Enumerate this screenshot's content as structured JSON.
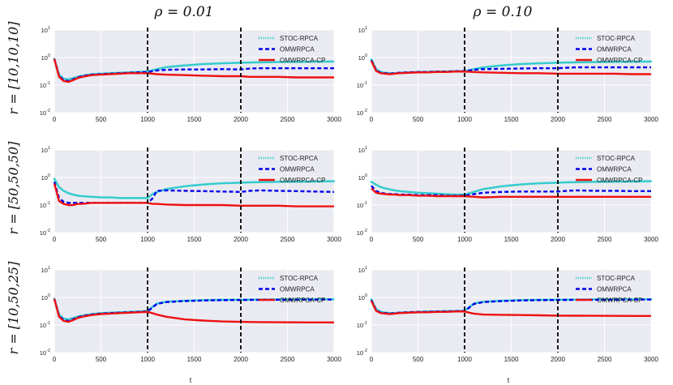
{
  "figure": {
    "column_titles": [
      "ρ = 0.01",
      "ρ = 0.10"
    ],
    "row_labels": [
      "r = [10,10,10]",
      "r = [50,50,50]",
      "r = [10,50,25]"
    ],
    "xlabel": "t"
  },
  "chart_data": [
    {
      "type": "line",
      "panel": "row1-col1",
      "x": [
        0,
        50,
        100,
        150,
        200,
        250,
        300,
        400,
        500,
        600,
        700,
        800,
        900,
        1000,
        1100,
        1200,
        1400,
        1600,
        1800,
        2000,
        2100,
        2200,
        2400,
        2600,
        2800,
        3000
      ],
      "series": [
        {
          "name": "STOC-RPCA",
          "color": "#33cccc",
          "style": "dotted",
          "values": [
            0.9,
            0.24,
            0.17,
            0.16,
            0.18,
            0.2,
            0.22,
            0.25,
            0.26,
            0.27,
            0.28,
            0.29,
            0.3,
            0.31,
            0.38,
            0.45,
            0.52,
            0.58,
            0.62,
            0.65,
            0.66,
            0.67,
            0.69,
            0.7,
            0.71,
            0.72
          ]
        },
        {
          "name": "OMWRPCA",
          "color": "#0000ee",
          "style": "dashed",
          "values": [
            0.9,
            0.22,
            0.15,
            0.14,
            0.16,
            0.19,
            0.21,
            0.24,
            0.25,
            0.26,
            0.27,
            0.28,
            0.29,
            0.3,
            0.34,
            0.36,
            0.37,
            0.37,
            0.38,
            0.37,
            0.4,
            0.41,
            0.41,
            0.41,
            0.41,
            0.41
          ]
        },
        {
          "name": "OMWRPCA-CP",
          "color": "#ee1111",
          "style": "solid",
          "values": [
            0.9,
            0.2,
            0.14,
            0.13,
            0.15,
            0.18,
            0.2,
            0.23,
            0.24,
            0.25,
            0.26,
            0.27,
            0.27,
            0.27,
            0.25,
            0.24,
            0.23,
            0.22,
            0.21,
            0.21,
            0.2,
            0.2,
            0.2,
            0.19,
            0.19,
            0.19
          ]
        }
      ],
      "change_points": [
        1000,
        2000
      ],
      "xlim": [
        0,
        3000
      ],
      "ylim": [
        0.01,
        10
      ],
      "yscale": "log",
      "xticks": [
        0,
        500,
        1000,
        1500,
        2000,
        2500,
        3000
      ],
      "grid": true,
      "legend": "top-right"
    },
    {
      "type": "line",
      "panel": "row1-col2",
      "x": [
        0,
        50,
        100,
        150,
        200,
        250,
        300,
        400,
        500,
        600,
        700,
        800,
        900,
        1000,
        1100,
        1200,
        1400,
        1600,
        1800,
        2000,
        2100,
        2200,
        2400,
        2600,
        2800,
        3000
      ],
      "series": [
        {
          "name": "STOC-RPCA",
          "color": "#33cccc",
          "style": "dotted",
          "values": [
            0.85,
            0.38,
            0.3,
            0.28,
            0.27,
            0.27,
            0.28,
            0.29,
            0.3,
            0.3,
            0.31,
            0.31,
            0.32,
            0.32,
            0.38,
            0.44,
            0.52,
            0.58,
            0.62,
            0.65,
            0.66,
            0.67,
            0.69,
            0.7,
            0.71,
            0.72
          ]
        },
        {
          "name": "OMWRPCA",
          "color": "#0000ee",
          "style": "dashed",
          "values": [
            0.8,
            0.35,
            0.28,
            0.27,
            0.26,
            0.27,
            0.28,
            0.29,
            0.3,
            0.3,
            0.31,
            0.31,
            0.32,
            0.32,
            0.36,
            0.38,
            0.39,
            0.4,
            0.41,
            0.41,
            0.43,
            0.44,
            0.44,
            0.44,
            0.44,
            0.44
          ]
        },
        {
          "name": "OMWRPCA-CP",
          "color": "#ee1111",
          "style": "solid",
          "values": [
            0.75,
            0.33,
            0.27,
            0.26,
            0.25,
            0.26,
            0.27,
            0.28,
            0.29,
            0.29,
            0.3,
            0.3,
            0.31,
            0.31,
            0.3,
            0.29,
            0.28,
            0.27,
            0.27,
            0.26,
            0.26,
            0.26,
            0.26,
            0.26,
            0.25,
            0.25
          ]
        }
      ],
      "change_points": [
        1000,
        2000
      ],
      "xlim": [
        0,
        3000
      ],
      "ylim": [
        0.01,
        10
      ],
      "yscale": "log",
      "xticks": [
        0,
        500,
        1000,
        1500,
        2000,
        2500,
        3000
      ],
      "grid": true,
      "legend": "top-right"
    },
    {
      "type": "line",
      "panel": "row2-col1",
      "x": [
        0,
        50,
        100,
        150,
        200,
        250,
        300,
        400,
        500,
        600,
        700,
        800,
        900,
        1000,
        1050,
        1100,
        1200,
        1400,
        1600,
        1800,
        2000,
        2100,
        2200,
        2400,
        2600,
        2800,
        3000
      ],
      "series": [
        {
          "name": "STOC-RPCA",
          "color": "#33cccc",
          "style": "dotted",
          "values": [
            0.9,
            0.45,
            0.33,
            0.27,
            0.24,
            0.22,
            0.21,
            0.2,
            0.19,
            0.19,
            0.18,
            0.18,
            0.18,
            0.18,
            0.25,
            0.3,
            0.38,
            0.48,
            0.56,
            0.62,
            0.65,
            0.67,
            0.68,
            0.7,
            0.71,
            0.72,
            0.73
          ]
        },
        {
          "name": "OMWRPCA",
          "color": "#0000ee",
          "style": "dashed",
          "values": [
            0.7,
            0.18,
            0.13,
            0.12,
            0.12,
            0.12,
            0.12,
            0.12,
            0.12,
            0.12,
            0.12,
            0.12,
            0.12,
            0.12,
            0.17,
            0.33,
            0.34,
            0.33,
            0.32,
            0.31,
            0.3,
            0.33,
            0.34,
            0.33,
            0.32,
            0.31,
            0.3
          ]
        },
        {
          "name": "OMWRPCA-CP",
          "color": "#ee1111",
          "style": "solid",
          "values": [
            0.6,
            0.14,
            0.11,
            0.1,
            0.1,
            0.11,
            0.11,
            0.12,
            0.12,
            0.12,
            0.12,
            0.12,
            0.12,
            0.12,
            0.11,
            0.11,
            0.105,
            0.1,
            0.1,
            0.1,
            0.095,
            0.095,
            0.095,
            0.095,
            0.09,
            0.09,
            0.09
          ]
        }
      ],
      "change_points": [
        1000,
        2000
      ],
      "xlim": [
        0,
        3000
      ],
      "ylim": [
        0.01,
        10
      ],
      "yscale": "log",
      "xticks": [
        0,
        500,
        1000,
        1500,
        2000,
        2500,
        3000
      ],
      "grid": true,
      "legend": "top-right"
    },
    {
      "type": "line",
      "panel": "row2-col2",
      "x": [
        0,
        50,
        100,
        150,
        200,
        250,
        300,
        400,
        500,
        600,
        700,
        800,
        900,
        1000,
        1100,
        1200,
        1400,
        1600,
        1800,
        2000,
        2100,
        2200,
        2400,
        2600,
        2800,
        3000
      ],
      "series": [
        {
          "name": "STOC-RPCA",
          "color": "#33cccc",
          "style": "dotted",
          "values": [
            0.7,
            0.55,
            0.45,
            0.4,
            0.37,
            0.34,
            0.32,
            0.3,
            0.28,
            0.27,
            0.26,
            0.25,
            0.24,
            0.24,
            0.3,
            0.38,
            0.48,
            0.56,
            0.62,
            0.65,
            0.67,
            0.68,
            0.7,
            0.71,
            0.72,
            0.73
          ]
        },
        {
          "name": "OMWRPCA",
          "color": "#0000ee",
          "style": "dashed",
          "values": [
            0.5,
            0.32,
            0.28,
            0.26,
            0.25,
            0.25,
            0.24,
            0.24,
            0.23,
            0.23,
            0.23,
            0.22,
            0.22,
            0.22,
            0.25,
            0.28,
            0.3,
            0.31,
            0.31,
            0.31,
            0.33,
            0.34,
            0.33,
            0.33,
            0.32,
            0.32
          ]
        },
        {
          "name": "OMWRPCA-CP",
          "color": "#ee1111",
          "style": "solid",
          "values": [
            0.4,
            0.28,
            0.26,
            0.25,
            0.24,
            0.24,
            0.23,
            0.23,
            0.22,
            0.22,
            0.21,
            0.21,
            0.21,
            0.21,
            0.2,
            0.19,
            0.2,
            0.2,
            0.2,
            0.2,
            0.2,
            0.2,
            0.2,
            0.2,
            0.2,
            0.2
          ]
        }
      ],
      "change_points": [
        1000,
        2000
      ],
      "xlim": [
        0,
        3000
      ],
      "ylim": [
        0.01,
        10
      ],
      "yscale": "log",
      "xticks": [
        0,
        500,
        1000,
        1500,
        2000,
        2500,
        3000
      ],
      "grid": true,
      "legend": "top-right"
    },
    {
      "type": "line",
      "panel": "row3-col1",
      "x": [
        0,
        50,
        100,
        150,
        200,
        250,
        300,
        400,
        500,
        600,
        700,
        800,
        900,
        1000,
        1050,
        1100,
        1200,
        1400,
        1600,
        1800,
        2000,
        2200,
        2400,
        2600,
        2800,
        3000
      ],
      "series": [
        {
          "name": "STOC-RPCA",
          "color": "#33cccc",
          "style": "dotted",
          "values": [
            0.9,
            0.24,
            0.17,
            0.16,
            0.18,
            0.2,
            0.22,
            0.25,
            0.27,
            0.28,
            0.29,
            0.3,
            0.31,
            0.32,
            0.45,
            0.6,
            0.7,
            0.76,
            0.8,
            0.82,
            0.83,
            0.84,
            0.85,
            0.85,
            0.86,
            0.86
          ]
        },
        {
          "name": "OMWRPCA",
          "color": "#0000ee",
          "style": "dashed",
          "values": [
            0.9,
            0.22,
            0.15,
            0.14,
            0.16,
            0.19,
            0.21,
            0.24,
            0.26,
            0.27,
            0.28,
            0.29,
            0.3,
            0.31,
            0.43,
            0.58,
            0.68,
            0.74,
            0.78,
            0.8,
            0.81,
            0.82,
            0.83,
            0.83,
            0.84,
            0.84
          ]
        },
        {
          "name": "OMWRPCA-CP",
          "color": "#ee1111",
          "style": "solid",
          "values": [
            0.9,
            0.2,
            0.14,
            0.13,
            0.15,
            0.18,
            0.2,
            0.23,
            0.25,
            0.26,
            0.27,
            0.28,
            0.29,
            0.3,
            0.27,
            0.24,
            0.2,
            0.16,
            0.145,
            0.135,
            0.13,
            0.128,
            0.126,
            0.125,
            0.124,
            0.124
          ]
        }
      ],
      "change_points": [
        1000,
        2000
      ],
      "xlim": [
        0,
        3000
      ],
      "ylim": [
        0.01,
        10
      ],
      "yscale": "log",
      "xticks": [
        0,
        500,
        1000,
        1500,
        2000,
        2500,
        3000
      ],
      "grid": true,
      "legend": "top-right"
    },
    {
      "type": "line",
      "panel": "row3-col2",
      "x": [
        0,
        50,
        100,
        150,
        200,
        250,
        300,
        400,
        500,
        600,
        700,
        800,
        900,
        1000,
        1050,
        1100,
        1200,
        1400,
        1600,
        1800,
        2000,
        2200,
        2400,
        2600,
        2800,
        3000
      ],
      "series": [
        {
          "name": "STOC-RPCA",
          "color": "#33cccc",
          "style": "dotted",
          "values": [
            0.85,
            0.38,
            0.3,
            0.28,
            0.27,
            0.27,
            0.28,
            0.29,
            0.3,
            0.31,
            0.31,
            0.32,
            0.32,
            0.33,
            0.45,
            0.6,
            0.7,
            0.76,
            0.8,
            0.82,
            0.83,
            0.84,
            0.85,
            0.85,
            0.86,
            0.86
          ]
        },
        {
          "name": "OMWRPCA",
          "color": "#0000ee",
          "style": "dashed",
          "values": [
            0.8,
            0.35,
            0.28,
            0.27,
            0.26,
            0.27,
            0.28,
            0.29,
            0.3,
            0.3,
            0.31,
            0.31,
            0.32,
            0.32,
            0.43,
            0.58,
            0.68,
            0.74,
            0.78,
            0.8,
            0.81,
            0.82,
            0.83,
            0.83,
            0.84,
            0.84
          ]
        },
        {
          "name": "OMWRPCA-CP",
          "color": "#ee1111",
          "style": "solid",
          "values": [
            0.75,
            0.33,
            0.27,
            0.26,
            0.25,
            0.26,
            0.27,
            0.28,
            0.29,
            0.29,
            0.3,
            0.3,
            0.31,
            0.31,
            0.28,
            0.26,
            0.24,
            0.235,
            0.23,
            0.225,
            0.22,
            0.218,
            0.216,
            0.215,
            0.214,
            0.213
          ]
        }
      ],
      "change_points": [
        1000,
        2000
      ],
      "xlim": [
        0,
        3000
      ],
      "ylim": [
        0.01,
        10
      ],
      "yscale": "log",
      "xticks": [
        0,
        500,
        1000,
        1500,
        2000,
        2500,
        3000
      ],
      "grid": true,
      "legend": "top-right"
    }
  ]
}
